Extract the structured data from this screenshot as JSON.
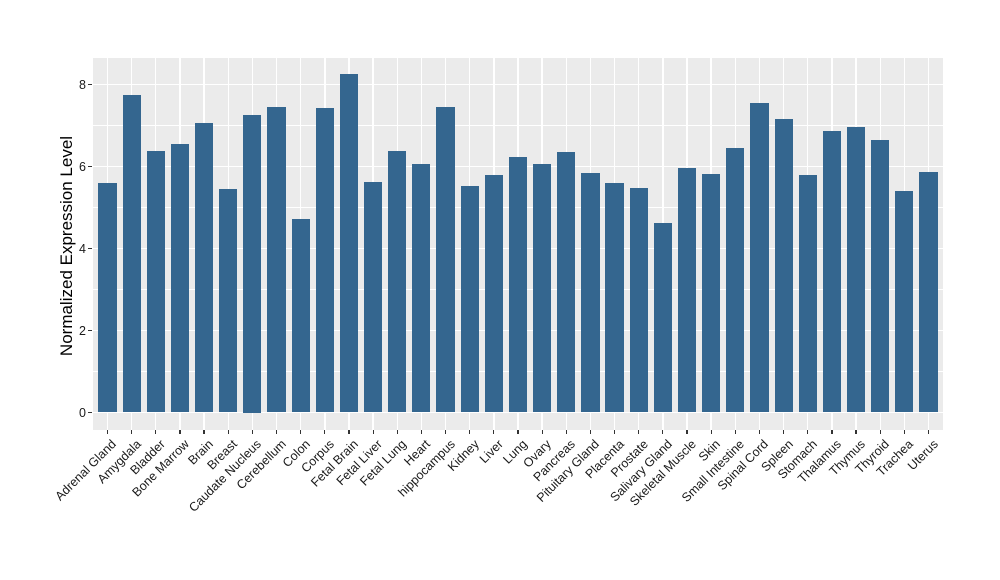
{
  "figure": {
    "background": "#FFFFFF"
  },
  "chart_data": {
    "type": "bar",
    "title": "",
    "xlabel": "",
    "ylabel": "Normalized Expression Level",
    "categories": [
      "Adrenal Gland",
      "Amygdala",
      "Bladder",
      "Bone Marrow",
      "Brain",
      "Breast",
      "Caudate Nucleus",
      "Cerebellum",
      "Colon",
      "Corpus",
      "Fetal Brain",
      "Fetal Liver",
      "Fetal Lung",
      "Heart",
      "hippocampus",
      "Kidney",
      "Liver",
      "Lung",
      "Ovary",
      "Pancreas",
      "Pituitary Gland",
      "Placenta",
      "Prostate",
      "Salivary Gland",
      "Skeletal Muscle",
      "Skin",
      "Small Intestine",
      "Spinal Cord",
      "Spleen",
      "Stomach",
      "Thalamus",
      "Thymus",
      "Thyroid",
      "Trachea",
      "Uterus"
    ],
    "values": [
      5.6,
      7.74,
      6.37,
      6.55,
      7.07,
      5.45,
      7.25,
      7.45,
      4.73,
      7.43,
      8.26,
      5.63,
      6.37,
      6.05,
      7.45,
      5.53,
      5.8,
      6.24,
      6.05,
      6.35,
      5.84,
      5.59,
      5.48,
      4.62,
      5.96,
      5.82,
      6.45,
      7.54,
      7.17,
      5.79,
      6.87,
      6.97,
      6.64,
      5.4,
      5.86
    ],
    "yticks": [
      0,
      2,
      4,
      6,
      8
    ],
    "yticks_minor": [
      1,
      3,
      5,
      7
    ],
    "ylim": [
      0,
      8.3
    ],
    "grid": "on",
    "legend": "none",
    "bar_color": "#34668F",
    "panel_bg": "#EBEBEB",
    "grid_color": "#FFFFFF",
    "axis_text_color": "#1A1A1A"
  }
}
